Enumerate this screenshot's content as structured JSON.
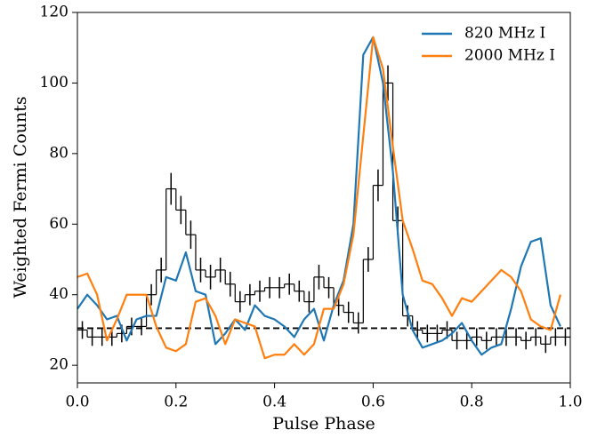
{
  "chart_data": {
    "type": "line",
    "x_label": "Pulse Phase",
    "y_label": "Weighted Fermi Counts",
    "xlim": [
      0,
      1
    ],
    "ylim": [
      15,
      120
    ],
    "xticks": [
      {
        "value": 0,
        "label": "0.0"
      },
      {
        "value": 0.2,
        "label": "0.2"
      },
      {
        "value": 0.4,
        "label": "0.4"
      },
      {
        "value": 0.6,
        "label": "0.6"
      },
      {
        "value": 0.8,
        "label": "0.8"
      },
      {
        "value": 1,
        "label": "1.0"
      }
    ],
    "yticks": [
      20,
      40,
      60,
      80,
      100,
      120
    ],
    "legend": "upper right",
    "x": [
      0,
      0.02,
      0.04,
      0.06,
      0.08,
      0.1,
      0.12,
      0.14,
      0.16,
      0.18,
      0.2,
      0.22,
      0.24,
      0.26,
      0.28,
      0.3,
      0.32,
      0.34,
      0.36,
      0.38,
      0.4,
      0.42,
      0.44,
      0.46,
      0.48,
      0.5,
      0.52,
      0.54,
      0.56,
      0.58,
      0.6,
      0.62,
      0.64,
      0.66,
      0.68,
      0.7,
      0.72,
      0.74,
      0.76,
      0.78,
      0.8,
      0.82,
      0.84,
      0.86,
      0.88,
      0.9,
      0.92,
      0.94,
      0.96,
      0.98
    ],
    "series": [
      {
        "name": "820 MHz I",
        "color": "#1f77b4",
        "values": [
          36,
          40,
          37,
          33,
          34,
          27,
          33,
          34,
          34,
          45,
          44,
          52,
          41,
          40,
          26,
          29,
          33,
          30,
          37,
          34,
          33,
          31,
          28,
          33,
          36,
          27,
          37,
          44,
          60,
          108,
          113,
          100,
          75,
          40,
          30,
          25,
          26,
          27,
          29,
          32,
          27,
          23,
          25,
          26,
          36,
          48,
          55,
          56,
          37,
          31
        ]
      },
      {
        "name": "2000 MHz I",
        "color": "#ff7f0e",
        "values": [
          45,
          46,
          40,
          27,
          33,
          40,
          40,
          40,
          31,
          25,
          24,
          26,
          38,
          39,
          34,
          26,
          33,
          32,
          31,
          22,
          23,
          23,
          26,
          23,
          26,
          36,
          36,
          43,
          57,
          85,
          113,
          104,
          82,
          61,
          53,
          44,
          43,
          39,
          34,
          39,
          38,
          41,
          44,
          47,
          45,
          41,
          33,
          31,
          30,
          40
        ]
      }
    ],
    "histogram": {
      "color": "#000000",
      "bins": [
        0,
        0.02,
        0.04,
        0.06,
        0.08,
        0.1,
        0.12,
        0.14,
        0.16,
        0.18,
        0.2,
        0.22,
        0.24,
        0.26,
        0.28,
        0.3,
        0.32,
        0.34,
        0.36,
        0.38,
        0.4,
        0.42,
        0.44,
        0.46,
        0.48,
        0.5,
        0.52,
        0.54,
        0.56,
        0.58,
        0.6,
        0.62,
        0.64,
        0.66,
        0.68,
        0.7,
        0.72,
        0.74,
        0.76,
        0.78,
        0.8,
        0.82,
        0.84,
        0.86,
        0.88,
        0.9,
        0.92,
        0.94,
        0.96,
        0.98,
        1
      ],
      "values": [
        30,
        28,
        28,
        28,
        29,
        31,
        31,
        40,
        47,
        70,
        64,
        57,
        47,
        45,
        47,
        43,
        38,
        40,
        41,
        42,
        42,
        43,
        41,
        38,
        45,
        42,
        37,
        35,
        32,
        50,
        71,
        100,
        61,
        34,
        30,
        29,
        29,
        30,
        27,
        27,
        28,
        27,
        28,
        28,
        28,
        27,
        28,
        26,
        28,
        28
      ],
      "errors": [
        2.5,
        2.5,
        2.5,
        2.5,
        2.5,
        2.5,
        2.5,
        3,
        3.5,
        4.5,
        4,
        4,
        3.5,
        3.5,
        3.5,
        3.5,
        3,
        3,
        3,
        3,
        3,
        3,
        3,
        3,
        3.5,
        3,
        3,
        3,
        3,
        3.5,
        4.5,
        5,
        4,
        3,
        2.5,
        2.5,
        2.5,
        2.5,
        2.5,
        2.5,
        2.5,
        2.5,
        2.5,
        2.5,
        2.5,
        2.5,
        2.5,
        2.5,
        2.5,
        2.5
      ]
    },
    "reference_line": 30.5
  }
}
